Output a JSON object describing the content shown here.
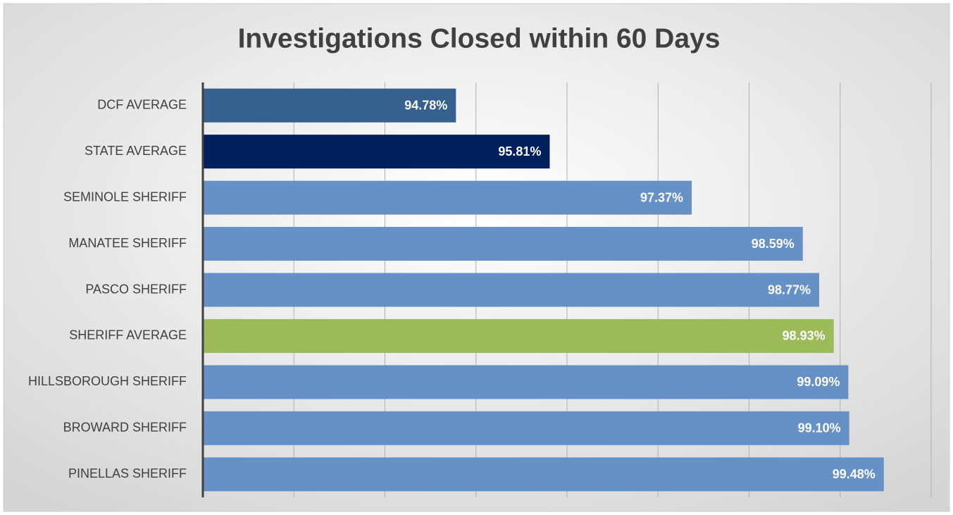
{
  "chart_data": {
    "type": "barh",
    "title": "Investigations Closed within 60 Days",
    "categories": [
      "DCF AVERAGE",
      "STATE AVERAGE",
      "SEMINOLE SHERIFF",
      "MANATEE SHERIFF",
      "PASCO SHERIFF",
      "SHERIFF AVERAGE",
      "HILLSBOROUGH SHERIFF",
      "BROWARD SHERIFF",
      "PINELLAS SHERIFF"
    ],
    "values": [
      94.78,
      95.81,
      97.37,
      98.59,
      98.77,
      98.93,
      99.09,
      99.1,
      99.48
    ],
    "value_labels": [
      "94.78%",
      "95.81%",
      "97.37%",
      "98.59%",
      "98.77%",
      "98.93%",
      "99.09%",
      "99.10%",
      "99.48%"
    ],
    "colors": [
      "#36618f",
      "#001f5c",
      "#6591c7",
      "#6591c7",
      "#6591c7",
      "#9bbb59",
      "#6591c7",
      "#6591c7",
      "#6591c7"
    ],
    "xlim": [
      92,
      100
    ],
    "xticks": [
      92,
      93,
      94,
      95,
      96,
      97,
      98,
      99,
      100
    ],
    "grid": true
  }
}
